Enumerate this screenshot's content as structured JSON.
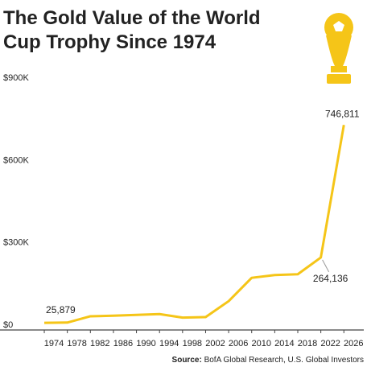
{
  "chart_data": {
    "type": "line",
    "title_line1": "The Gold Value of the World",
    "title_line2": "Cup Trophy Since 1974",
    "source_label": "Source:",
    "source": "BofA Global Research, U.S. Global Investors",
    "x": [
      1974,
      1978,
      1982,
      1986,
      1990,
      1994,
      1998,
      2002,
      2006,
      2010,
      2014,
      2018,
      2022,
      2026
    ],
    "series": [
      {
        "name": "Gold value",
        "color": "#f5c518",
        "values": [
          25879,
          27000,
          50000,
          52000,
          55000,
          58000,
          45000,
          47000,
          105000,
          190000,
          200000,
          203000,
          264136,
          746811
        ],
        "value_labels": [
          "25,879",
          null,
          null,
          null,
          null,
          null,
          null,
          null,
          null,
          null,
          null,
          null,
          "264,136",
          "746,811"
        ]
      }
    ],
    "xlim": [
      1971.9,
      2027.5
    ],
    "xticks": [
      1974,
      1978,
      1982,
      1986,
      1990,
      1994,
      1998,
      2002,
      2006,
      2010,
      2014,
      2018,
      2022,
      2026
    ],
    "ylim": [
      0,
      900000
    ],
    "yticks": [
      {
        "value": 0,
        "label": "$0"
      },
      {
        "value": 300000,
        "label": "$300K"
      },
      {
        "value": 600000,
        "label": "$600K"
      },
      {
        "value": 900000,
        "label": "$900K"
      }
    ]
  }
}
